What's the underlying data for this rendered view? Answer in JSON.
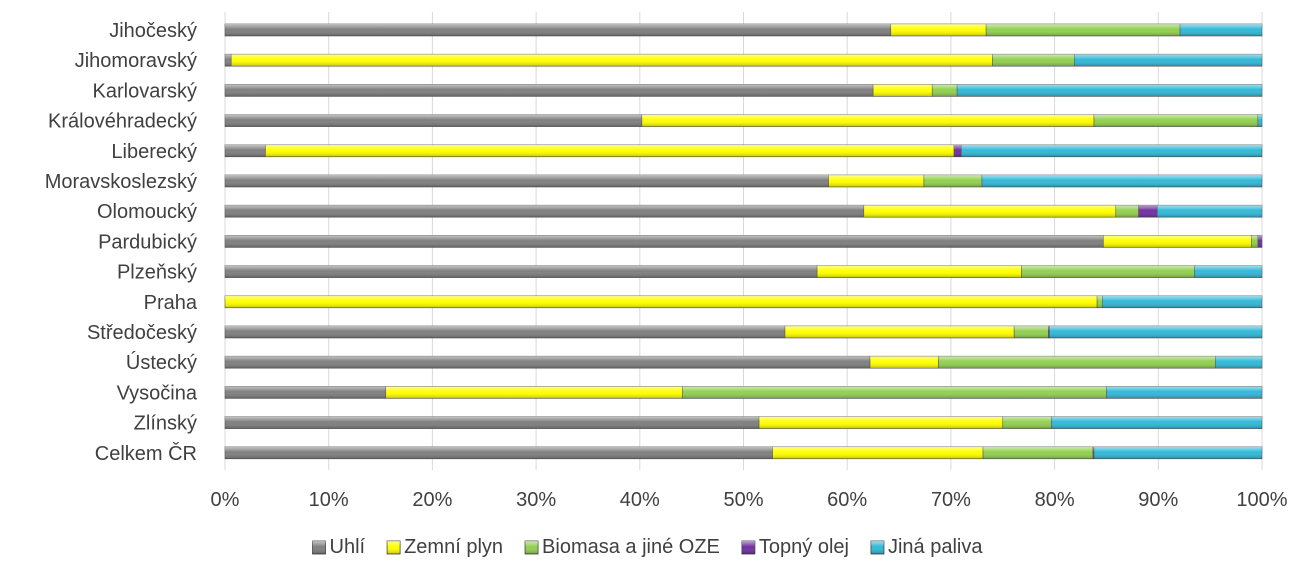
{
  "chart_data": {
    "type": "bar",
    "orientation": "horizontal",
    "stacked": "percent",
    "categories": [
      "Jihočeský",
      "Jihomoravský",
      "Karlovarský",
      "Královéhradecký",
      "Liberecký",
      "Moravskoslezský",
      "Olomoucký",
      "Pardubický",
      "Plzeňský",
      "Praha",
      "Středočeský",
      "Ústecký",
      "Vysočina",
      "Zlínský",
      "Celkem ČR"
    ],
    "series": [
      {
        "name": "Uhlí",
        "color": "#7f7f7f",
        "values": [
          64.2,
          0.6,
          62.5,
          40.2,
          3.9,
          58.2,
          61.6,
          84.7,
          57.1,
          0.0,
          54.0,
          62.2,
          15.5,
          51.5,
          52.8
        ]
      },
      {
        "name": "Zemní plyn",
        "color": "#ffff00",
        "values": [
          9.2,
          73.4,
          5.7,
          43.6,
          66.4,
          9.2,
          24.3,
          14.3,
          19.7,
          84.1,
          22.1,
          6.6,
          28.6,
          23.5,
          20.3
        ]
      },
      {
        "name": "Biomasa a jiné OZE",
        "color": "#92d050",
        "values": [
          18.7,
          7.9,
          2.4,
          15.8,
          0.0,
          5.6,
          2.2,
          0.6,
          16.7,
          0.5,
          3.3,
          26.7,
          40.9,
          4.7,
          10.6
        ]
      },
      {
        "name": "Topný olej",
        "color": "#7030a0",
        "values": [
          0.0,
          0.0,
          0.0,
          0.0,
          0.7,
          0.0,
          1.8,
          0.4,
          0.0,
          0.0,
          0.1,
          0.0,
          0.0,
          0.0,
          0.1
        ]
      },
      {
        "name": "Jiná paliva",
        "color": "#31b9d7",
        "values": [
          7.9,
          18.1,
          29.4,
          0.4,
          29.0,
          27.0,
          10.1,
          0.0,
          6.5,
          15.4,
          20.5,
          4.5,
          15.0,
          20.3,
          16.2
        ]
      }
    ],
    "x_ticks": [
      "0%",
      "10%",
      "20%",
      "30%",
      "40%",
      "50%",
      "60%",
      "70%",
      "80%",
      "90%",
      "100%"
    ],
    "xlim": [
      0,
      100
    ],
    "grid": "vertical",
    "legend": "bottom"
  }
}
